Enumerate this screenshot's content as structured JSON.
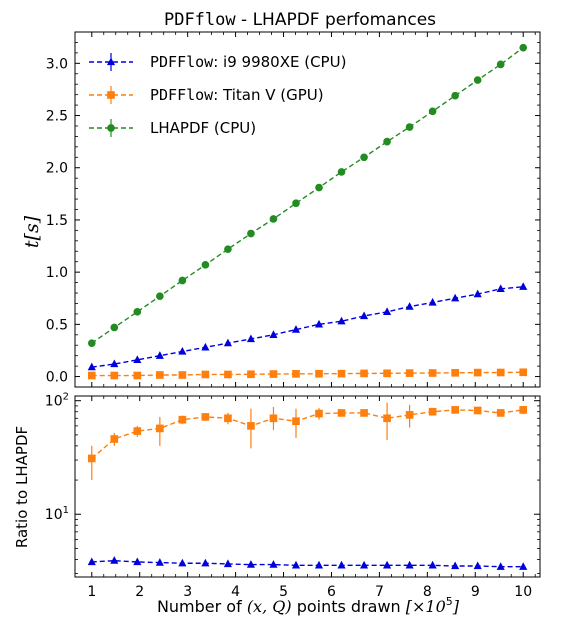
{
  "chart_data": [
    {
      "type": "line",
      "title_mono": "PDFflow",
      "title_rest": " - LHAPDF perfomances",
      "ylabel": "t[s]",
      "ylim": [
        -0.1,
        3.3
      ],
      "yticks": [
        0.0,
        0.5,
        1.0,
        1.5,
        2.0,
        2.5,
        3.0
      ],
      "ytick_labels": [
        "0.0",
        "0.5",
        "1.0",
        "1.5",
        "2.0",
        "2.5",
        "3.0"
      ],
      "xlim": [
        0.65,
        10.35
      ],
      "x": [
        1.0,
        1.47,
        1.95,
        2.42,
        2.89,
        3.37,
        3.84,
        4.32,
        4.79,
        5.26,
        5.74,
        6.21,
        6.68,
        7.16,
        7.63,
        8.11,
        8.58,
        9.05,
        9.53,
        10.0
      ],
      "grid": false,
      "legend_position": "top-left",
      "series": [
        {
          "legend_mono": "PDFFlow",
          "legend_rest": ": i9 9980XE (CPU)",
          "color": "#0000dd",
          "marker": "triangle",
          "values": [
            0.09,
            0.12,
            0.16,
            0.2,
            0.24,
            0.28,
            0.32,
            0.36,
            0.4,
            0.45,
            0.5,
            0.53,
            0.58,
            0.62,
            0.67,
            0.71,
            0.75,
            0.79,
            0.84,
            0.86
          ]
        },
        {
          "legend_mono": "PDFFlow",
          "legend_rest": ": Titan V (GPU)",
          "color": "#ff7f0e",
          "marker": "square",
          "values": [
            0.01,
            0.01,
            0.01,
            0.015,
            0.015,
            0.02,
            0.02,
            0.022,
            0.024,
            0.026,
            0.027,
            0.028,
            0.03,
            0.031,
            0.033,
            0.034,
            0.036,
            0.038,
            0.039,
            0.041
          ]
        },
        {
          "legend_mono": "",
          "legend_rest": "LHAPDF (CPU)",
          "color": "#228b22",
          "marker": "circle",
          "values": [
            0.32,
            0.47,
            0.62,
            0.77,
            0.92,
            1.07,
            1.22,
            1.37,
            1.51,
            1.66,
            1.81,
            1.96,
            2.1,
            2.25,
            2.39,
            2.54,
            2.69,
            2.84,
            2.99,
            3.15
          ]
        }
      ]
    },
    {
      "type": "line",
      "ylabel": "Ratio to LHAPDF",
      "yscale": "log",
      "ylim": [
        2.8,
        110
      ],
      "xlim": [
        0.65,
        10.35
      ],
      "xticks": [
        1,
        2,
        3,
        4,
        5,
        6,
        7,
        8,
        9,
        10
      ],
      "xtick_labels": [
        "1",
        "2",
        "3",
        "4",
        "5",
        "6",
        "7",
        "8",
        "9",
        "10"
      ],
      "ytick_labels": [
        "10^1",
        "10^2"
      ],
      "xlabel_pre": "Number of ",
      "xlabel_math": "(x, Q)",
      "xlabel_post": " points drawn ",
      "xlabel_scale": "[×10",
      "xlabel_exp": "5",
      "xlabel_close": "]",
      "x": [
        1.0,
        1.47,
        1.95,
        2.42,
        2.89,
        3.37,
        3.84,
        4.32,
        4.79,
        5.26,
        5.74,
        6.21,
        6.68,
        7.16,
        7.63,
        8.11,
        8.58,
        9.05,
        9.53,
        10.0
      ],
      "series": [
        {
          "color": "#ff7f0e",
          "marker": "square",
          "values": [
            31,
            46,
            54,
            57,
            68,
            72,
            70,
            60,
            70,
            66,
            77,
            78,
            78,
            70,
            75,
            80,
            83,
            82,
            78,
            83
          ],
          "err_low": [
            20,
            40,
            48,
            40,
            62,
            68,
            62,
            38,
            55,
            47,
            68,
            74,
            75,
            45,
            58,
            76,
            80,
            79,
            74,
            76
          ],
          "err_high": [
            40,
            52,
            60,
            72,
            74,
            76,
            78,
            85,
            88,
            85,
            86,
            82,
            82,
            96,
            92,
            84,
            86,
            85,
            83,
            90
          ]
        },
        {
          "color": "#0000dd",
          "marker": "triangle",
          "values": [
            3.8,
            3.9,
            3.8,
            3.75,
            3.7,
            3.7,
            3.65,
            3.6,
            3.6,
            3.55,
            3.55,
            3.55,
            3.55,
            3.55,
            3.55,
            3.55,
            3.5,
            3.5,
            3.45,
            3.45
          ]
        }
      ]
    }
  ]
}
